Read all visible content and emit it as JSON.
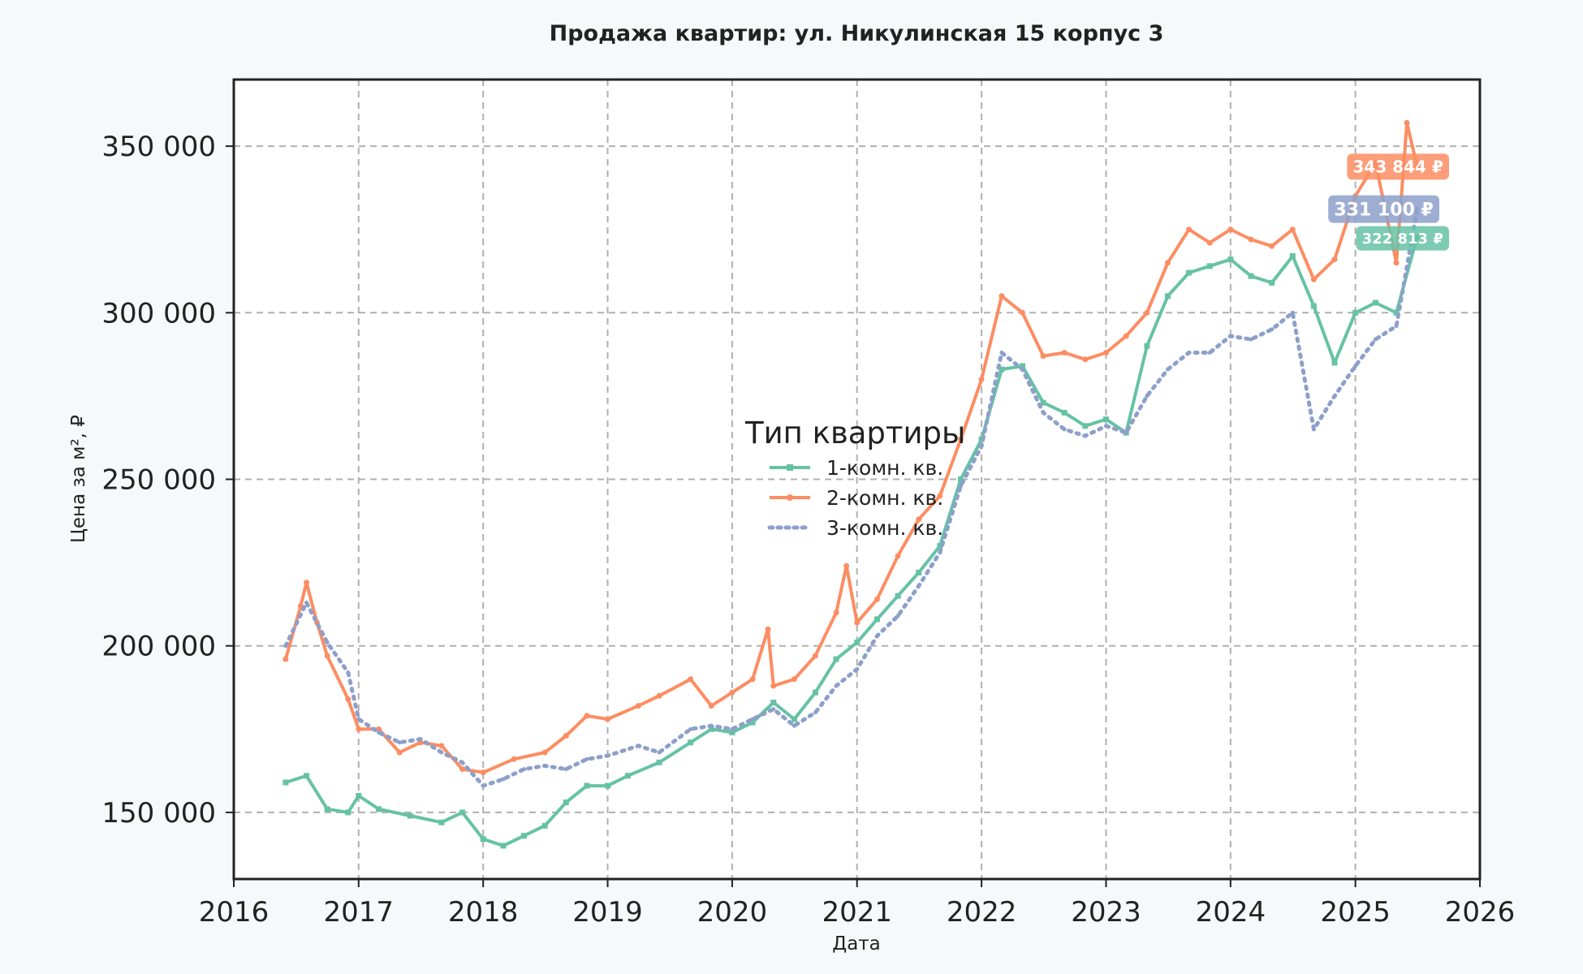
{
  "chart_data": {
    "type": "line",
    "title": "Продажа квартир: ул. Никулинская 15 корпус 3",
    "xlabel": "Дата",
    "ylabel": "Цена за м², ₽",
    "xlim": [
      "2016-01-01",
      "2026-01-01"
    ],
    "ylim": [
      130000,
      370000
    ],
    "x_ticks": [
      "2016",
      "2017",
      "2018",
      "2019",
      "2020",
      "2021",
      "2022",
      "2023",
      "2024",
      "2025",
      "2026"
    ],
    "y_ticks": [
      150000,
      200000,
      250000,
      300000,
      350000
    ],
    "y_tick_labels": [
      "150 000",
      "200 000",
      "250 000",
      "300 000",
      "350 000"
    ],
    "grid": true,
    "legend": {
      "title": "Тип квартиры",
      "placement": "center",
      "entries": [
        "1-комн. кв.",
        "2-комн. кв.",
        "3-комн. кв."
      ]
    },
    "series": [
      {
        "name": "1-комн. кв.",
        "color": "#66c2a5",
        "style": "solid-square",
        "end_label": "322 813 ₽",
        "points": [
          [
            "2016-06-01",
            159000
          ],
          [
            "2016-08-01",
            161000
          ],
          [
            "2016-10-01",
            151000
          ],
          [
            "2016-12-01",
            150000
          ],
          [
            "2017-01-01",
            155000
          ],
          [
            "2017-03-01",
            151000
          ],
          [
            "2017-06-01",
            149000
          ],
          [
            "2017-09-01",
            147000
          ],
          [
            "2017-11-01",
            150000
          ],
          [
            "2018-01-01",
            142000
          ],
          [
            "2018-03-01",
            140000
          ],
          [
            "2018-05-01",
            143000
          ],
          [
            "2018-07-01",
            146000
          ],
          [
            "2018-09-01",
            153000
          ],
          [
            "2018-11-01",
            158000
          ],
          [
            "2019-01-01",
            158000
          ],
          [
            "2019-03-01",
            161000
          ],
          [
            "2019-06-01",
            165000
          ],
          [
            "2019-09-01",
            171000
          ],
          [
            "2019-11-01",
            175000
          ],
          [
            "2020-01-01",
            174000
          ],
          [
            "2020-03-01",
            177000
          ],
          [
            "2020-05-01",
            183000
          ],
          [
            "2020-07-01",
            178000
          ],
          [
            "2020-09-01",
            186000
          ],
          [
            "2020-11-01",
            196000
          ],
          [
            "2021-01-01",
            201000
          ],
          [
            "2021-03-01",
            208000
          ],
          [
            "2021-05-01",
            215000
          ],
          [
            "2021-07-01",
            222000
          ],
          [
            "2021-09-01",
            230000
          ],
          [
            "2021-11-01",
            250000
          ],
          [
            "2022-01-01",
            262000
          ],
          [
            "2022-03-01",
            283000
          ],
          [
            "2022-05-01",
            284000
          ],
          [
            "2022-07-01",
            273000
          ],
          [
            "2022-09-01",
            270000
          ],
          [
            "2022-11-01",
            266000
          ],
          [
            "2023-01-01",
            268000
          ],
          [
            "2023-03-01",
            264000
          ],
          [
            "2023-05-01",
            290000
          ],
          [
            "2023-07-01",
            305000
          ],
          [
            "2023-09-01",
            312000
          ],
          [
            "2023-11-01",
            314000
          ],
          [
            "2024-01-01",
            316000
          ],
          [
            "2024-03-01",
            311000
          ],
          [
            "2024-05-01",
            309000
          ],
          [
            "2024-07-01",
            317000
          ],
          [
            "2024-09-01",
            302000
          ],
          [
            "2024-11-01",
            285000
          ],
          [
            "2025-01-01",
            300000
          ],
          [
            "2025-03-01",
            303000
          ],
          [
            "2025-05-01",
            300000
          ],
          [
            "2025-07-01",
            322813
          ]
        ]
      },
      {
        "name": "2-комн. кв.",
        "color": "#fc8d62",
        "style": "solid-dot",
        "end_label": "343 844 ₽",
        "points": [
          [
            "2016-06-01",
            196000
          ],
          [
            "2016-07-15",
            212000
          ],
          [
            "2016-08-01",
            219000
          ],
          [
            "2016-09-01",
            207000
          ],
          [
            "2016-10-01",
            197000
          ],
          [
            "2016-12-01",
            184000
          ],
          [
            "2017-01-01",
            175000
          ],
          [
            "2017-03-01",
            175000
          ],
          [
            "2017-05-01",
            168000
          ],
          [
            "2017-07-01",
            171000
          ],
          [
            "2017-09-01",
            170000
          ],
          [
            "2017-11-01",
            163000
          ],
          [
            "2018-01-01",
            162000
          ],
          [
            "2018-04-01",
            166000
          ],
          [
            "2018-07-01",
            168000
          ],
          [
            "2018-09-01",
            173000
          ],
          [
            "2018-11-01",
            179000
          ],
          [
            "2019-01-01",
            178000
          ],
          [
            "2019-04-01",
            182000
          ],
          [
            "2019-06-01",
            185000
          ],
          [
            "2019-09-01",
            190000
          ],
          [
            "2019-11-01",
            182000
          ],
          [
            "2020-01-01",
            186000
          ],
          [
            "2020-03-01",
            190000
          ],
          [
            "2020-04-15",
            205000
          ],
          [
            "2020-05-01",
            188000
          ],
          [
            "2020-07-01",
            190000
          ],
          [
            "2020-09-01",
            197000
          ],
          [
            "2020-11-01",
            210000
          ],
          [
            "2020-12-01",
            224000
          ],
          [
            "2021-01-01",
            207000
          ],
          [
            "2021-03-01",
            214000
          ],
          [
            "2021-05-01",
            227000
          ],
          [
            "2021-07-01",
            238000
          ],
          [
            "2021-09-01",
            245000
          ],
          [
            "2021-11-01",
            262000
          ],
          [
            "2022-01-01",
            280000
          ],
          [
            "2022-03-01",
            305000
          ],
          [
            "2022-05-01",
            300000
          ],
          [
            "2022-07-01",
            287000
          ],
          [
            "2022-09-01",
            288000
          ],
          [
            "2022-11-01",
            286000
          ],
          [
            "2023-01-01",
            288000
          ],
          [
            "2023-03-01",
            293000
          ],
          [
            "2023-05-01",
            300000
          ],
          [
            "2023-07-01",
            315000
          ],
          [
            "2023-09-01",
            325000
          ],
          [
            "2023-11-01",
            321000
          ],
          [
            "2024-01-01",
            325000
          ],
          [
            "2024-03-01",
            322000
          ],
          [
            "2024-05-01",
            320000
          ],
          [
            "2024-07-01",
            325000
          ],
          [
            "2024-09-01",
            310000
          ],
          [
            "2024-11-01",
            316000
          ],
          [
            "2025-01-01",
            335000
          ],
          [
            "2025-03-01",
            345000
          ],
          [
            "2025-05-01",
            315000
          ],
          [
            "2025-06-01",
            357000
          ],
          [
            "2025-07-01",
            343844
          ]
        ]
      },
      {
        "name": "3-комн. кв.",
        "color": "#8da0cb",
        "style": "dotted",
        "end_label": "331 100 ₽",
        "points": [
          [
            "2016-06-01",
            200000
          ],
          [
            "2016-08-01",
            213000
          ],
          [
            "2016-10-01",
            201000
          ],
          [
            "2016-12-01",
            192000
          ],
          [
            "2017-01-01",
            178000
          ],
          [
            "2017-03-01",
            174000
          ],
          [
            "2017-05-01",
            171000
          ],
          [
            "2017-07-01",
            172000
          ],
          [
            "2017-09-01",
            168000
          ],
          [
            "2017-11-01",
            165000
          ],
          [
            "2018-01-01",
            158000
          ],
          [
            "2018-03-01",
            160000
          ],
          [
            "2018-05-01",
            163000
          ],
          [
            "2018-07-01",
            164000
          ],
          [
            "2018-09-01",
            163000
          ],
          [
            "2018-11-01",
            166000
          ],
          [
            "2019-01-01",
            167000
          ],
          [
            "2019-04-01",
            170000
          ],
          [
            "2019-06-01",
            168000
          ],
          [
            "2019-09-01",
            175000
          ],
          [
            "2019-11-01",
            176000
          ],
          [
            "2020-01-01",
            175000
          ],
          [
            "2020-03-01",
            178000
          ],
          [
            "2020-05-01",
            181000
          ],
          [
            "2020-07-01",
            176000
          ],
          [
            "2020-09-01",
            180000
          ],
          [
            "2020-11-01",
            188000
          ],
          [
            "2021-01-01",
            193000
          ],
          [
            "2021-03-01",
            203000
          ],
          [
            "2021-05-01",
            209000
          ],
          [
            "2021-07-01",
            218000
          ],
          [
            "2021-09-01",
            228000
          ],
          [
            "2021-11-01",
            248000
          ],
          [
            "2022-01-01",
            260000
          ],
          [
            "2022-03-01",
            288000
          ],
          [
            "2022-05-01",
            283000
          ],
          [
            "2022-07-01",
            270000
          ],
          [
            "2022-09-01",
            265000
          ],
          [
            "2022-11-01",
            263000
          ],
          [
            "2023-01-01",
            266000
          ],
          [
            "2023-03-01",
            264000
          ],
          [
            "2023-05-01",
            275000
          ],
          [
            "2023-07-01",
            283000
          ],
          [
            "2023-09-01",
            288000
          ],
          [
            "2023-11-01",
            288000
          ],
          [
            "2024-01-01",
            293000
          ],
          [
            "2024-03-01",
            292000
          ],
          [
            "2024-05-01",
            295000
          ],
          [
            "2024-07-01",
            300000
          ],
          [
            "2024-09-01",
            265000
          ],
          [
            "2024-11-01",
            275000
          ],
          [
            "2025-01-01",
            284000
          ],
          [
            "2025-03-01",
            292000
          ],
          [
            "2025-05-01",
            296000
          ],
          [
            "2025-07-01",
            331100
          ]
        ]
      }
    ]
  }
}
